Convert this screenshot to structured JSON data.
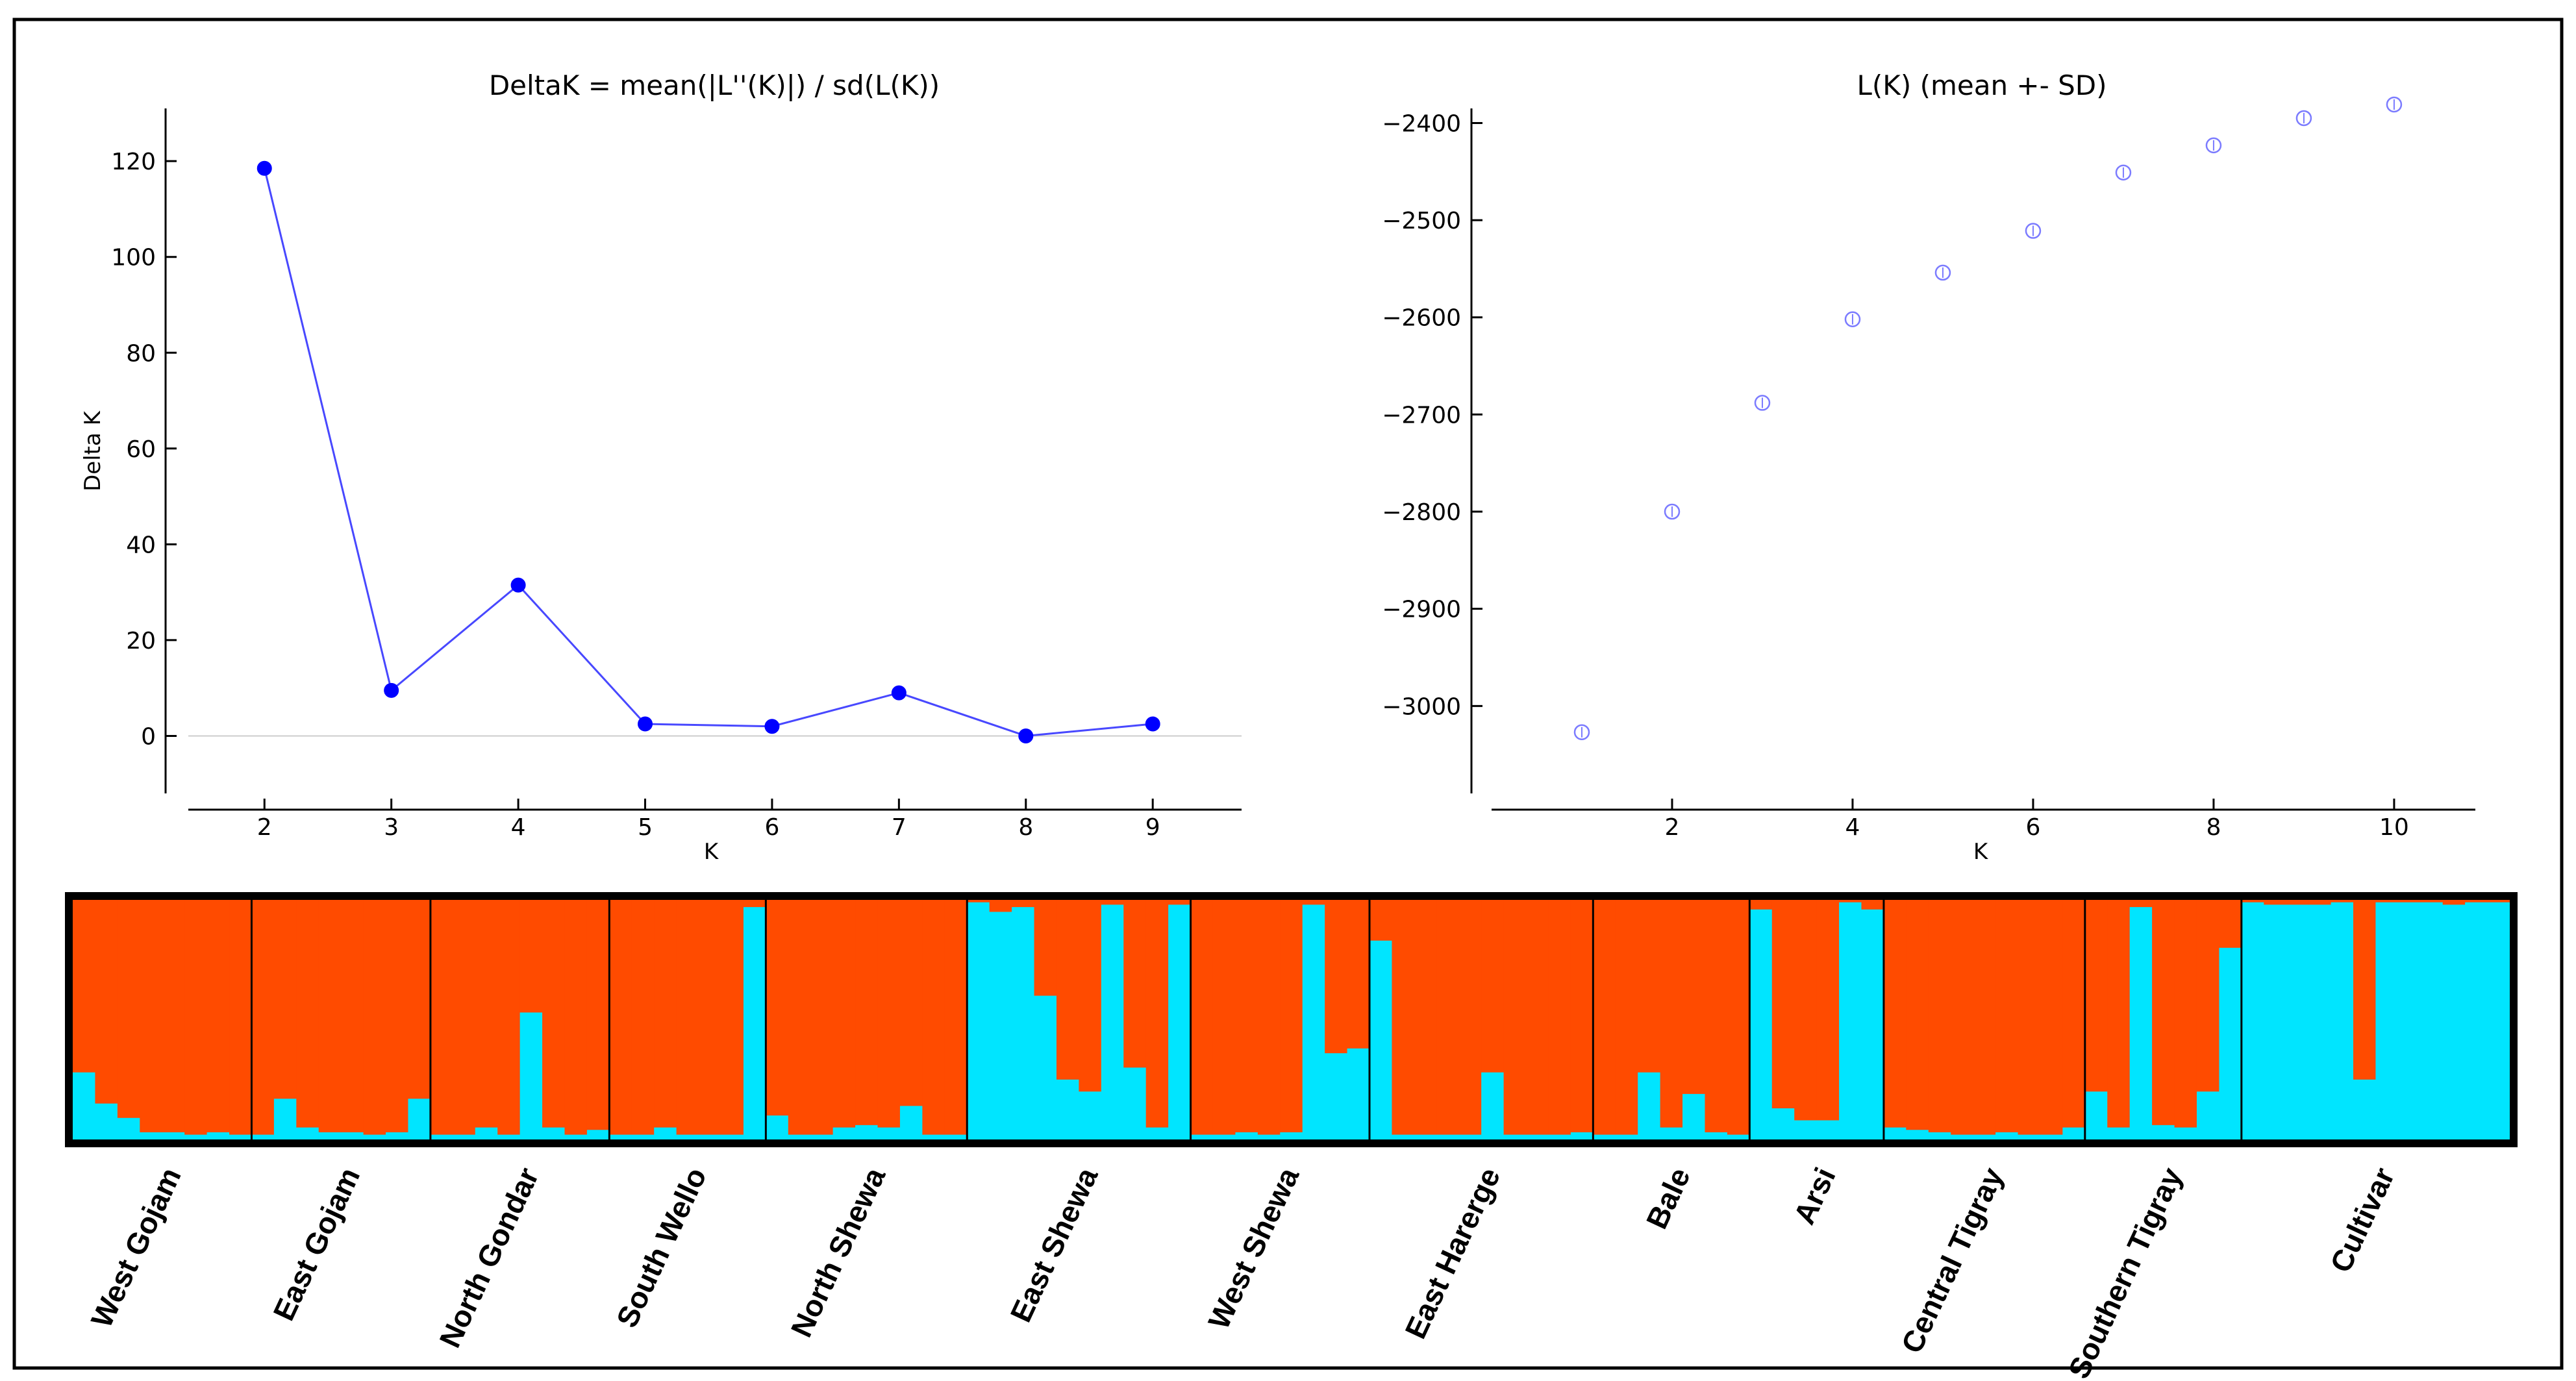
{
  "chart_data": [
    {
      "type": "line",
      "title": "DeltaK = mean(|L''(K)|) / sd(L(K))",
      "xlabel": "K",
      "ylabel": "Delta K",
      "x": [
        2,
        3,
        4,
        5,
        6,
        7,
        8,
        9
      ],
      "values": [
        118.5,
        9.5,
        31.5,
        2.5,
        2.0,
        9.0,
        0.0,
        2.5
      ],
      "xlim": [
        1.4,
        9.7
      ],
      "ylim": [
        -12,
        131
      ],
      "xticks": [
        2,
        3,
        4,
        5,
        6,
        7,
        8,
        9
      ],
      "yticks": [
        0,
        20,
        40,
        60,
        80,
        100,
        120
      ],
      "color": "#0000ff",
      "line_color": "#4848ff",
      "zero_line_color": "#cccccc"
    },
    {
      "type": "scatter",
      "title": "L(K) (mean +- SD)",
      "xlabel": "K",
      "ylabel": "",
      "x": [
        1,
        2,
        3,
        4,
        5,
        6,
        7,
        8,
        9,
        10
      ],
      "values": [
        -3027,
        -2800,
        -2688,
        -2602,
        -2554,
        -2511,
        -2451,
        -2423,
        -2395,
        -2381
      ],
      "xlim": [
        0.0,
        10.9
      ],
      "ylim": [
        -3090,
        -2385
      ],
      "xticks": [
        2,
        4,
        6,
        8,
        10
      ],
      "yticks": [
        -3000,
        -2900,
        -2800,
        -2700,
        -2600,
        -2500,
        -2400
      ],
      "marker_color": "#7b7bff"
    },
    {
      "type": "bar",
      "subtype": "stacked-admixture",
      "colors": {
        "cluster1": "#00e5ff",
        "cluster2": "#ff4b00",
        "border": "#000000"
      },
      "groups": [
        {
          "name": "West Gojam",
          "values": [
            0.28,
            0.15,
            0.09,
            0.03,
            0.03,
            0.02,
            0.03,
            0.02
          ]
        },
        {
          "name": "East Gojam",
          "values": [
            0.02,
            0.17,
            0.05,
            0.03,
            0.03,
            0.02,
            0.03,
            0.17
          ]
        },
        {
          "name": "North Gondar",
          "values": [
            0.02,
            0.02,
            0.05,
            0.02,
            0.53,
            0.05,
            0.02,
            0.04
          ]
        },
        {
          "name": "South Wello",
          "values": [
            0.02,
            0.02,
            0.05,
            0.02,
            0.02,
            0.02,
            0.97
          ]
        },
        {
          "name": "North Shewa",
          "values": [
            0.1,
            0.02,
            0.02,
            0.05,
            0.06,
            0.05,
            0.14,
            0.02,
            0.02
          ]
        },
        {
          "name": "East Shewa",
          "values": [
            0.99,
            0.95,
            0.97,
            0.6,
            0.25,
            0.2,
            0.98,
            0.3,
            0.05,
            0.98
          ]
        },
        {
          "name": "West Shewa",
          "values": [
            0.02,
            0.02,
            0.03,
            0.02,
            0.03,
            0.98,
            0.36,
            0.38
          ]
        },
        {
          "name": "East Harerge",
          "values": [
            0.83,
            0.02,
            0.02,
            0.02,
            0.02,
            0.28,
            0.02,
            0.02,
            0.02,
            0.03
          ]
        },
        {
          "name": "Bale",
          "values": [
            0.02,
            0.02,
            0.28,
            0.05,
            0.19,
            0.03,
            0.02
          ]
        },
        {
          "name": "Arsi",
          "values": [
            0.96,
            0.13,
            0.08,
            0.08,
            0.99,
            0.96
          ]
        },
        {
          "name": "Central Tigray",
          "values": [
            0.05,
            0.04,
            0.03,
            0.02,
            0.02,
            0.03,
            0.02,
            0.02,
            0.05
          ]
        },
        {
          "name": "Southern Tigray",
          "values": [
            0.2,
            0.05,
            0.97,
            0.06,
            0.05,
            0.2,
            0.8
          ]
        },
        {
          "name": "Cultivar",
          "values": [
            0.99,
            0.98,
            0.98,
            0.98,
            0.99,
            0.25,
            0.99,
            0.99,
            0.99,
            0.98,
            0.99,
            0.99
          ]
        }
      ]
    }
  ]
}
